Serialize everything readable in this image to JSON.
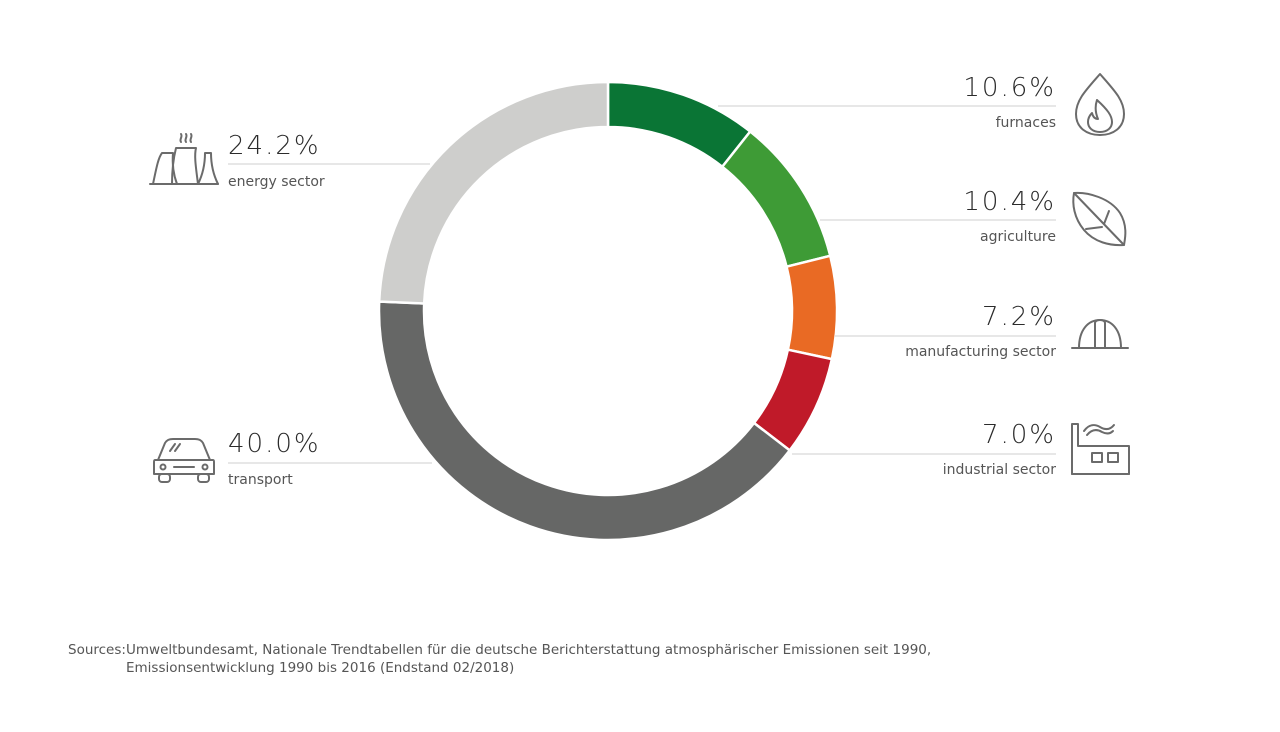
{
  "chart_data": {
    "type": "pie",
    "segments": [
      {
        "name": "furnaces",
        "value": 10.6,
        "label": "10.6%",
        "color": "#0a7535",
        "icon": "flame-icon"
      },
      {
        "name": "agriculture",
        "value": 10.4,
        "label": "10.4%",
        "color": "#3e9b36",
        "icon": "leaf-icon"
      },
      {
        "name": "manufacturing sector",
        "value": 7.2,
        "label": "7.2%",
        "color": "#e96a24",
        "icon": "hard-hat-icon"
      },
      {
        "name": "industrial sector",
        "value": 7.0,
        "label": "7.0%",
        "color": "#c01a29",
        "icon": "factory-icon"
      },
      {
        "name": "transport",
        "value": 40.0,
        "label": "40.0%",
        "color": "#666766",
        "icon": "car-icon"
      },
      {
        "name": "energy sector",
        "value": 24.2,
        "label": "24.2%",
        "color": "#cececc",
        "icon": "power-plant-icon"
      }
    ]
  },
  "sources": {
    "label": "Sources:",
    "line1": "Umweltbundesamt, Nationale Trendtabellen für die deutsche Berichterstattung atmosphärischer Emissionen seit 1990,",
    "line2": "Emissionsentwicklung 1990 bis 2016 (Endstand 02/2018)"
  }
}
